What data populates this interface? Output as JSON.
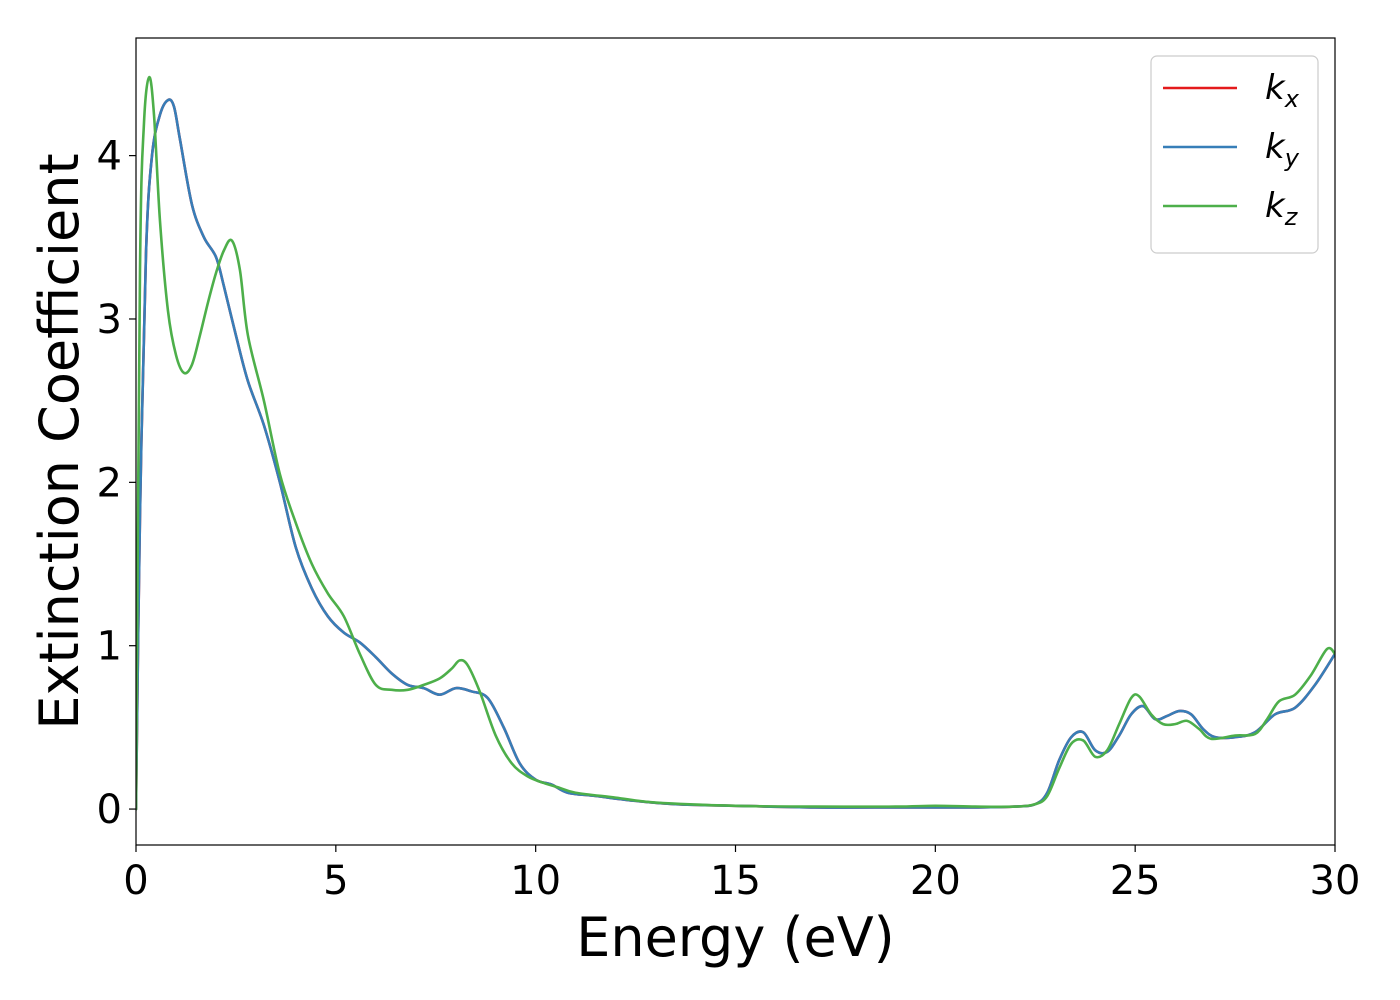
{
  "chart_data": {
    "type": "line",
    "title": "",
    "xlabel": "Energy (eV)",
    "ylabel": "Extinction Coefficient",
    "xlim": [
      0,
      30
    ],
    "ylim": [
      -0.22,
      4.72
    ],
    "xticks": [
      0,
      5,
      10,
      15,
      20,
      25,
      30
    ],
    "yticks": [
      0,
      1,
      2,
      3,
      4
    ],
    "xtick_labels": [
      "0",
      "5",
      "10",
      "15",
      "20",
      "25",
      "30"
    ],
    "ytick_labels": [
      "0",
      "1",
      "2",
      "3",
      "4"
    ],
    "grid": false,
    "legend_position": "top-right",
    "series": [
      {
        "name": "kx",
        "legend_main": "k",
        "legend_sub": "x",
        "color": "#e41a1c",
        "x": [
          0,
          0.1,
          0.25,
          0.4,
          0.6,
          0.8,
          0.95,
          1.1,
          1.4,
          1.7,
          2.0,
          2.2,
          2.5,
          2.8,
          3.2,
          3.6,
          4.0,
          4.4,
          4.8,
          5.2,
          5.6,
          6.0,
          6.4,
          6.8,
          7.2,
          7.6,
          8.0,
          8.4,
          8.8,
          9.2,
          9.6,
          10.0,
          10.4,
          10.8,
          11.5,
          12.5,
          13.5,
          15.0,
          17.0,
          19.0,
          20.0,
          21.0,
          22.0,
          22.5,
          22.8,
          23.1,
          23.4,
          23.7,
          24.0,
          24.3,
          24.6,
          24.9,
          25.2,
          25.5,
          25.8,
          26.1,
          26.4,
          26.7,
          27.0,
          27.5,
          28.0,
          28.5,
          29.0,
          29.5,
          30.0
        ],
        "y": [
          0.0,
          1.8,
          3.4,
          4.0,
          4.25,
          4.34,
          4.3,
          4.1,
          3.7,
          3.5,
          3.38,
          3.2,
          2.9,
          2.62,
          2.35,
          2.0,
          1.6,
          1.35,
          1.18,
          1.08,
          1.02,
          0.93,
          0.83,
          0.76,
          0.74,
          0.7,
          0.74,
          0.72,
          0.68,
          0.5,
          0.28,
          0.18,
          0.15,
          0.1,
          0.08,
          0.05,
          0.03,
          0.02,
          0.01,
          0.01,
          0.01,
          0.01,
          0.015,
          0.03,
          0.1,
          0.3,
          0.44,
          0.47,
          0.36,
          0.35,
          0.45,
          0.58,
          0.63,
          0.55,
          0.57,
          0.6,
          0.58,
          0.49,
          0.44,
          0.44,
          0.47,
          0.58,
          0.62,
          0.76,
          0.95
        ]
      },
      {
        "name": "ky",
        "legend_main": "k",
        "legend_sub": "y",
        "color": "#377eb8",
        "x": [
          0,
          0.1,
          0.25,
          0.4,
          0.6,
          0.8,
          0.95,
          1.1,
          1.4,
          1.7,
          2.0,
          2.2,
          2.5,
          2.8,
          3.2,
          3.6,
          4.0,
          4.4,
          4.8,
          5.2,
          5.6,
          6.0,
          6.4,
          6.8,
          7.2,
          7.6,
          8.0,
          8.4,
          8.8,
          9.2,
          9.6,
          10.0,
          10.4,
          10.8,
          11.5,
          12.5,
          13.5,
          15.0,
          17.0,
          19.0,
          20.0,
          21.0,
          22.0,
          22.5,
          22.8,
          23.1,
          23.4,
          23.7,
          24.0,
          24.3,
          24.6,
          24.9,
          25.2,
          25.5,
          25.8,
          26.1,
          26.4,
          26.7,
          27.0,
          27.5,
          28.0,
          28.5,
          29.0,
          29.5,
          30.0
        ],
        "y": [
          0.0,
          1.8,
          3.4,
          4.0,
          4.25,
          4.34,
          4.3,
          4.1,
          3.7,
          3.5,
          3.38,
          3.2,
          2.9,
          2.62,
          2.35,
          2.0,
          1.6,
          1.35,
          1.18,
          1.08,
          1.02,
          0.93,
          0.83,
          0.76,
          0.74,
          0.7,
          0.74,
          0.72,
          0.68,
          0.5,
          0.28,
          0.18,
          0.15,
          0.1,
          0.08,
          0.05,
          0.03,
          0.02,
          0.01,
          0.01,
          0.01,
          0.01,
          0.015,
          0.03,
          0.1,
          0.3,
          0.44,
          0.47,
          0.36,
          0.35,
          0.45,
          0.58,
          0.63,
          0.55,
          0.57,
          0.6,
          0.58,
          0.49,
          0.44,
          0.44,
          0.47,
          0.58,
          0.62,
          0.76,
          0.95
        ]
      },
      {
        "name": "kz",
        "legend_main": "k",
        "legend_sub": "z",
        "color": "#4daf4a",
        "x": [
          0,
          0.1,
          0.2,
          0.33,
          0.45,
          0.6,
          0.8,
          1.0,
          1.2,
          1.4,
          1.6,
          1.8,
          2.0,
          2.2,
          2.4,
          2.6,
          2.8,
          3.2,
          3.6,
          4.0,
          4.4,
          4.8,
          5.2,
          5.6,
          6.0,
          6.4,
          6.8,
          7.2,
          7.6,
          7.9,
          8.1,
          8.3,
          8.6,
          9.0,
          9.4,
          9.8,
          10.2,
          10.6,
          11.0,
          12.0,
          13.0,
          15.0,
          17.0,
          19.0,
          20.0,
          21.0,
          22.0,
          22.5,
          22.8,
          23.1,
          23.4,
          23.7,
          24.0,
          24.3,
          24.6,
          24.9,
          25.1,
          25.4,
          25.7,
          26.0,
          26.3,
          26.6,
          26.9,
          27.5,
          28.0,
          28.3,
          28.6,
          29.0,
          29.4,
          29.8,
          30.0
        ],
        "y": [
          0.0,
          3.3,
          4.2,
          4.48,
          4.25,
          3.6,
          3.05,
          2.78,
          2.67,
          2.72,
          2.9,
          3.1,
          3.28,
          3.42,
          3.48,
          3.3,
          2.9,
          2.5,
          2.05,
          1.75,
          1.5,
          1.32,
          1.18,
          0.95,
          0.76,
          0.73,
          0.73,
          0.76,
          0.8,
          0.86,
          0.91,
          0.88,
          0.72,
          0.45,
          0.28,
          0.2,
          0.16,
          0.13,
          0.1,
          0.07,
          0.04,
          0.02,
          0.015,
          0.015,
          0.02,
          0.015,
          0.015,
          0.03,
          0.08,
          0.25,
          0.4,
          0.42,
          0.32,
          0.36,
          0.52,
          0.68,
          0.69,
          0.58,
          0.52,
          0.52,
          0.54,
          0.49,
          0.43,
          0.45,
          0.46,
          0.55,
          0.66,
          0.7,
          0.82,
          0.98,
          0.95
        ]
      }
    ]
  }
}
